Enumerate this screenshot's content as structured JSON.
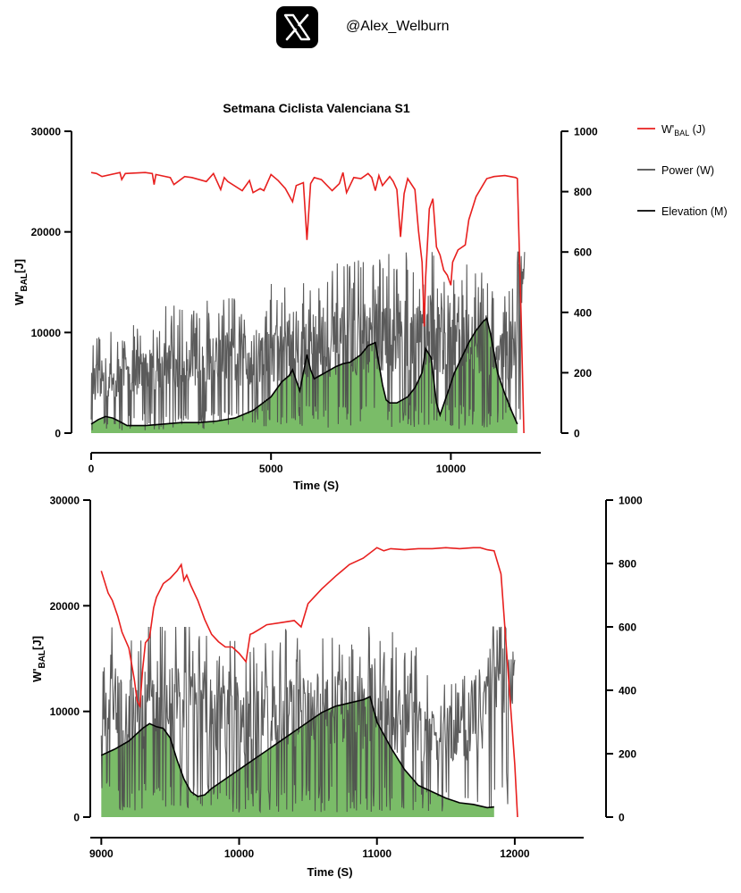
{
  "header": {
    "logo_icon": "x-logo-icon",
    "handle": "@Alex_Welburn"
  },
  "colors": {
    "wbal": "#e8201f",
    "power": "#4d4d4d",
    "elevation_line": "#000000",
    "elevation_fill": "#63b04e"
  },
  "legend": [
    {
      "label": "W'BAL (J)",
      "main": "W'",
      "sub": "BAL",
      "tail": " (J)",
      "color": "#e8201f"
    },
    {
      "label": "Power (W)",
      "main": "Power (W)",
      "sub": "",
      "tail": "",
      "color": "#4d4d4d"
    },
    {
      "label": "Elevation (M)",
      "main": "Elevation (M)",
      "sub": "",
      "tail": "",
      "color": "#000000"
    }
  ],
  "chart_data": [
    {
      "type": "line",
      "title": "Setmana Ciclista Valenciana S1",
      "xlabel": "Time (S)",
      "ylabel_left": "W'BAL[J]",
      "xlim": [
        0,
        12500
      ],
      "ylim_left": [
        0,
        30000
      ],
      "ylim_right": [
        0,
        1000
      ],
      "xticks": [
        0,
        5000,
        10000
      ],
      "yticks_left": [
        0,
        10000,
        20000,
        30000
      ],
      "yticks_right": [
        0,
        200,
        400,
        600,
        800,
        1000
      ],
      "series": [
        {
          "name": "W'BAL (J)",
          "axis": "left",
          "x": [
            0,
            150,
            300,
            800,
            850,
            950,
            1500,
            1700,
            1750,
            1800,
            2200,
            2300,
            2600,
            2800,
            3200,
            3400,
            3600,
            3700,
            3800,
            4200,
            4400,
            4500,
            4700,
            4800,
            5000,
            5200,
            5400,
            5600,
            5700,
            5900,
            6000,
            6100,
            6200,
            6400,
            6700,
            6900,
            7000,
            7100,
            7300,
            7500,
            7700,
            7800,
            7900,
            8000,
            8100,
            8300,
            8400,
            8500,
            8600,
            8700,
            8800,
            9000,
            9100,
            9200,
            9260,
            9300,
            9400,
            9500,
            9600,
            9700,
            9800,
            9900,
            10000,
            10050,
            10200,
            10400,
            10500,
            10700,
            10900,
            11000,
            11200,
            11500,
            11800,
            11850,
            11950,
            12030
          ],
          "y": [
            25900,
            25800,
            25500,
            25900,
            25200,
            25800,
            25900,
            25800,
            24700,
            25700,
            25400,
            24700,
            25500,
            25400,
            25000,
            25800,
            24200,
            25400,
            25000,
            24100,
            25100,
            23900,
            24300,
            24100,
            25700,
            25100,
            24300,
            23000,
            24600,
            24900,
            19200,
            24800,
            25400,
            25200,
            24100,
            24800,
            25900,
            23900,
            25400,
            25300,
            25800,
            25400,
            24100,
            25600,
            24600,
            25500,
            25000,
            24200,
            19500,
            23800,
            25300,
            24200,
            20100,
            17000,
            10600,
            15500,
            22300,
            23300,
            18500,
            17700,
            16200,
            15700,
            14700,
            17000,
            18200,
            18700,
            21200,
            23500,
            24700,
            25300,
            25500,
            25600,
            25400,
            25300,
            12000,
            0
          ]
        },
        {
          "name": "Power (W)",
          "axis": "right",
          "x": [
            0,
            1000,
            2000,
            3000,
            4000,
            5000,
            6000,
            7000,
            8000,
            9000,
            9500,
            10000,
            10500,
            11000,
            11500,
            11800,
            11850,
            12000,
            12050
          ],
          "y": [
            150,
            170,
            200,
            210,
            220,
            240,
            260,
            270,
            280,
            300,
            300,
            260,
            280,
            260,
            240,
            250,
            380,
            400,
            420
          ]
        },
        {
          "name": "Elevation (M)",
          "axis": "right",
          "x": [
            0,
            200,
            400,
            600,
            800,
            1000,
            1500,
            2000,
            2500,
            3000,
            3500,
            4000,
            4500,
            5000,
            5300,
            5500,
            5600,
            5800,
            5900,
            6000,
            6100,
            6200,
            6500,
            6800,
            7000,
            7200,
            7500,
            7700,
            7900,
            8000,
            8100,
            8200,
            8300,
            8500,
            8800,
            9000,
            9200,
            9300,
            9450,
            9600,
            9700,
            9900,
            10100,
            10300,
            10500,
            10700,
            10900,
            11000,
            11100,
            11300,
            11500,
            11700,
            11850
          ],
          "y": [
            30,
            45,
            55,
            50,
            38,
            25,
            25,
            30,
            35,
            35,
            40,
            50,
            75,
            120,
            170,
            190,
            210,
            140,
            200,
            260,
            210,
            180,
            200,
            220,
            230,
            235,
            260,
            290,
            300,
            230,
            160,
            110,
            100,
            100,
            120,
            150,
            200,
            280,
            250,
            100,
            60,
            130,
            200,
            250,
            300,
            340,
            370,
            380,
            330,
            200,
            130,
            70,
            30
          ]
        }
      ]
    },
    {
      "type": "line",
      "title": "",
      "xlabel": "Time (S)",
      "ylabel_left": "W'BAL[J]",
      "xlim": [
        8920,
        12500
      ],
      "ylim_left": [
        0,
        30000
      ],
      "ylim_right": [
        0,
        1000
      ],
      "xticks": [
        9000,
        10000,
        11000,
        12000
      ],
      "yticks_left": [
        0,
        10000,
        20000,
        30000
      ],
      "yticks_right": [
        0,
        200,
        400,
        600,
        800,
        1000
      ],
      "series": [
        {
          "name": "W'BAL (J)",
          "axis": "left",
          "x": [
            9000,
            9050,
            9080,
            9120,
            9150,
            9200,
            9240,
            9260,
            9280,
            9300,
            9320,
            9350,
            9380,
            9400,
            9450,
            9500,
            9550,
            9580,
            9600,
            9620,
            9650,
            9700,
            9750,
            9800,
            9850,
            9900,
            9950,
            10000,
            10050,
            10080,
            10100,
            10150,
            10200,
            10300,
            10400,
            10450,
            10500,
            10550,
            10600,
            10700,
            10800,
            10900,
            11000,
            11050,
            11100,
            11200,
            11300,
            11400,
            11500,
            11600,
            11700,
            11750,
            11800,
            11850,
            11900,
            12000,
            12020
          ],
          "y": [
            23300,
            21200,
            20500,
            19000,
            17500,
            16000,
            13000,
            11000,
            10500,
            14000,
            16500,
            17000,
            19800,
            20800,
            22100,
            22600,
            23300,
            23900,
            22400,
            22900,
            21900,
            20500,
            18700,
            17300,
            16600,
            16100,
            16100,
            15500,
            14700,
            17300,
            17400,
            17800,
            18200,
            18400,
            18600,
            18000,
            20200,
            20900,
            21600,
            22800,
            23900,
            24500,
            25500,
            25200,
            25400,
            25300,
            25400,
            25400,
            25500,
            25400,
            25500,
            25500,
            25300,
            25200,
            23000,
            5000,
            0
          ]
        },
        {
          "name": "Power (W)",
          "axis": "right",
          "x": [
            9000,
            9250,
            9500,
            9750,
            10000,
            10250,
            10500,
            10750,
            11000,
            11250,
            11500,
            11750,
            11850,
            12000
          ],
          "y": [
            330,
            300,
            320,
            300,
            260,
            280,
            300,
            310,
            300,
            260,
            230,
            230,
            380,
            500
          ]
        },
        {
          "name": "Elevation (M)",
          "axis": "right",
          "x": [
            9000,
            9100,
            9200,
            9250,
            9300,
            9350,
            9400,
            9450,
            9500,
            9550,
            9600,
            9650,
            9700,
            9750,
            9800,
            9900,
            10000,
            10100,
            10200,
            10300,
            10400,
            10500,
            10600,
            10700,
            10800,
            10900,
            10950,
            11000,
            11100,
            11200,
            11300,
            11400,
            11500,
            11600,
            11700,
            11800,
            11850
          ],
          "y": [
            195,
            215,
            240,
            260,
            280,
            295,
            285,
            280,
            250,
            180,
            120,
            80,
            65,
            70,
            90,
            120,
            150,
            180,
            210,
            240,
            270,
            300,
            330,
            350,
            360,
            370,
            380,
            300,
            220,
            150,
            100,
            80,
            60,
            45,
            40,
            30,
            32
          ]
        }
      ]
    }
  ]
}
